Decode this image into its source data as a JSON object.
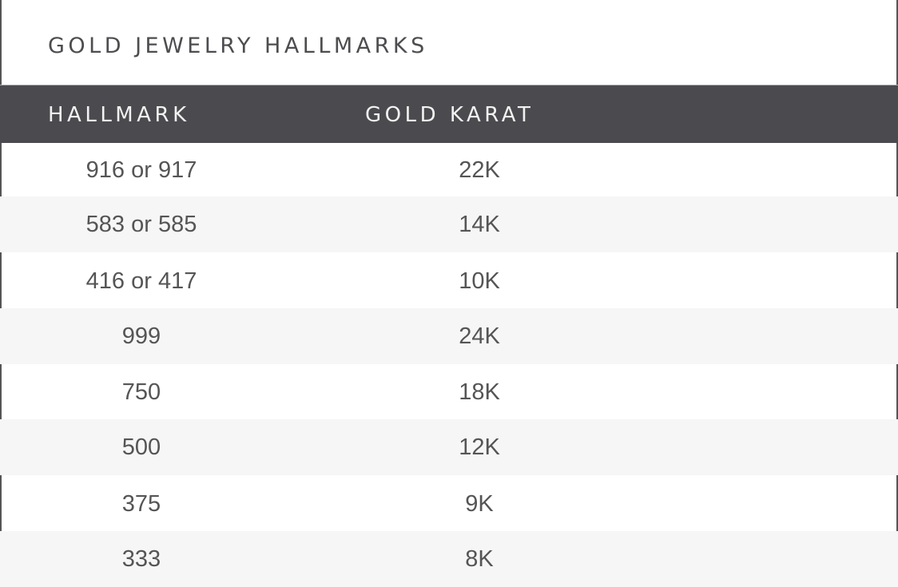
{
  "title": "GOLD JEWELRY HALLMARKS",
  "columns": [
    "HALLMARK",
    "GOLD KARAT"
  ],
  "rows": [
    {
      "hallmark": "916 or 917",
      "karat": "22K"
    },
    {
      "hallmark": "583 or 585",
      "karat": "14K"
    },
    {
      "hallmark": "416 or 417",
      "karat": "10K"
    },
    {
      "hallmark": "999",
      "karat": "24K"
    },
    {
      "hallmark": "750",
      "karat": "18K"
    },
    {
      "hallmark": "500",
      "karat": "12K"
    },
    {
      "hallmark": "375",
      "karat": "9K"
    },
    {
      "hallmark": "333",
      "karat": "8K"
    }
  ],
  "colors": {
    "header_bg": "#4b4b4f",
    "alt_row_bg": "#f6f6f6",
    "text": "#555555"
  }
}
